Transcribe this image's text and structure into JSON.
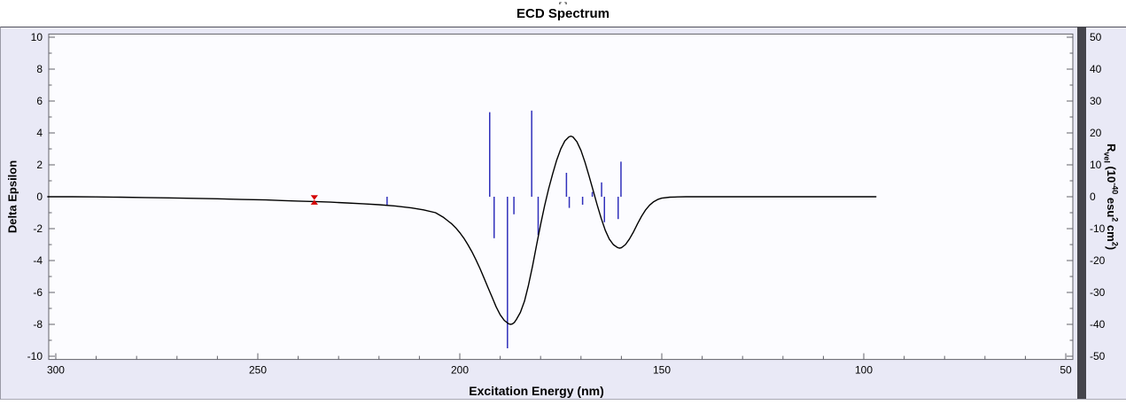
{
  "page": {
    "title_fragment": "·[ ]·"
  },
  "colors": {
    "panel_bg": "#e9e9f6",
    "plot_bg": "#fcfcff",
    "frame": "#62626a",
    "shadow_band": "#45454c",
    "curve": "#000000",
    "sticks": "#3030bb",
    "marker": "#d40000",
    "text": "#000000"
  },
  "chart_data": {
    "type": "line",
    "subtype": "ecd-spectrum-with-rotatory-strength-sticks",
    "title": "ECD Spectrum",
    "xlabel": "Excitation Energy (nm)",
    "ylabel_left": "Delta Epsilon",
    "ylabel_right_parts": [
      [
        "R",
        ""
      ],
      [
        "vel",
        "sub"
      ],
      [
        " (10",
        ""
      ],
      [
        "-40",
        "sup"
      ],
      [
        " esu",
        ""
      ],
      [
        "2",
        "sup"
      ],
      [
        " cm",
        ""
      ],
      [
        "2",
        "sup"
      ],
      [
        ")",
        ""
      ]
    ],
    "grid": false,
    "legend": "none",
    "x_axis_reversed": true,
    "x_range": [
      301.75,
      48.25
    ],
    "x_ticks_major": [
      300,
      250,
      200,
      150,
      100,
      50
    ],
    "x_tick_minor_step": 10,
    "y_left_range": [
      -10.2,
      10.2
    ],
    "y_left_ticks": [
      10,
      8,
      6,
      4,
      2,
      0,
      -2,
      -4,
      -6,
      -8,
      -10
    ],
    "y_right_range": [
      -51,
      51
    ],
    "y_right_ticks": [
      50,
      40,
      30,
      20,
      10,
      0,
      -10,
      -20,
      -30,
      -40,
      -50
    ],
    "curve": {
      "name": "ecd-curve",
      "axis": "left",
      "points": [
        [
          302,
          0
        ],
        [
          296,
          0
        ],
        [
          290,
          -0.01
        ],
        [
          284,
          -0.03
        ],
        [
          278,
          -0.05
        ],
        [
          272,
          -0.07
        ],
        [
          266,
          -0.1
        ],
        [
          260,
          -0.13
        ],
        [
          254,
          -0.17
        ],
        [
          248,
          -0.2
        ],
        [
          244,
          -0.24
        ],
        [
          240,
          -0.27
        ],
        [
          236,
          -0.3
        ],
        [
          232,
          -0.34
        ],
        [
          228,
          -0.39
        ],
        [
          224,
          -0.44
        ],
        [
          220,
          -0.5
        ],
        [
          216,
          -0.58
        ],
        [
          212,
          -0.7
        ],
        [
          209,
          -0.82
        ],
        [
          206,
          -1.0
        ],
        [
          204,
          -1.3
        ],
        [
          203,
          -1.5
        ],
        [
          202,
          -1.7
        ],
        [
          201,
          -1.95
        ],
        [
          200,
          -2.25
        ],
        [
          199,
          -2.6
        ],
        [
          198,
          -3.0
        ],
        [
          197,
          -3.45
        ],
        [
          196,
          -3.95
        ],
        [
          195,
          -4.5
        ],
        [
          194,
          -5.1
        ],
        [
          193,
          -5.7
        ],
        [
          192,
          -6.3
        ],
        [
          191,
          -6.9
        ],
        [
          190,
          -7.4
        ],
        [
          189,
          -7.75
        ],
        [
          188,
          -7.95
        ],
        [
          187.5,
          -8.0
        ],
        [
          187,
          -7.98
        ],
        [
          186.5,
          -7.88
        ],
        [
          186,
          -7.7
        ],
        [
          185,
          -7.25
        ],
        [
          184,
          -6.55
        ],
        [
          183,
          -5.55
        ],
        [
          182,
          -4.35
        ],
        [
          181,
          -3.05
        ],
        [
          180,
          -1.75
        ],
        [
          179,
          -0.55
        ],
        [
          178,
          0.5
        ],
        [
          177,
          1.45
        ],
        [
          176,
          2.3
        ],
        [
          175,
          3.0
        ],
        [
          174,
          3.5
        ],
        [
          173,
          3.75
        ],
        [
          172.5,
          3.8
        ],
        [
          172,
          3.75
        ],
        [
          171,
          3.45
        ],
        [
          170,
          2.9
        ],
        [
          169,
          2.15
        ],
        [
          168,
          1.3
        ],
        [
          167,
          0.4
        ],
        [
          166,
          -0.5
        ],
        [
          165,
          -1.35
        ],
        [
          164,
          -2.1
        ],
        [
          163,
          -2.65
        ],
        [
          162,
          -3.0
        ],
        [
          161,
          -3.18
        ],
        [
          160.5,
          -3.22
        ],
        [
          160,
          -3.2
        ],
        [
          159,
          -3.0
        ],
        [
          158,
          -2.65
        ],
        [
          157,
          -2.2
        ],
        [
          156,
          -1.7
        ],
        [
          155,
          -1.22
        ],
        [
          154,
          -0.82
        ],
        [
          153,
          -0.52
        ],
        [
          152,
          -0.31
        ],
        [
          151,
          -0.17
        ],
        [
          150,
          -0.09
        ],
        [
          148,
          -0.03
        ],
        [
          146,
          -0.01
        ],
        [
          144,
          0
        ],
        [
          138,
          0
        ],
        [
          130,
          0
        ],
        [
          122,
          0
        ],
        [
          114,
          0
        ],
        [
          106,
          0
        ],
        [
          100,
          0
        ],
        [
          97,
          0
        ]
      ]
    },
    "sticks": {
      "name": "rotatory-strength-sticks",
      "axis": "right",
      "items": [
        [
          218.0,
          -2.5
        ],
        [
          192.6,
          26.5
        ],
        [
          191.5,
          -13.0
        ],
        [
          188.2,
          -47.5
        ],
        [
          186.6,
          -5.5
        ],
        [
          182.2,
          27.0
        ],
        [
          180.6,
          -12.0
        ],
        [
          173.6,
          7.5
        ],
        [
          172.9,
          -3.5
        ],
        [
          169.6,
          -2.5
        ],
        [
          167.2,
          1.5
        ],
        [
          164.9,
          4.5
        ],
        [
          164.2,
          -8.0
        ],
        [
          160.8,
          -7.0
        ],
        [
          160.1,
          11.0
        ]
      ]
    },
    "marker": {
      "name": "red-experimental-marker",
      "x": 236,
      "y": -0.2,
      "axis": "left"
    }
  }
}
